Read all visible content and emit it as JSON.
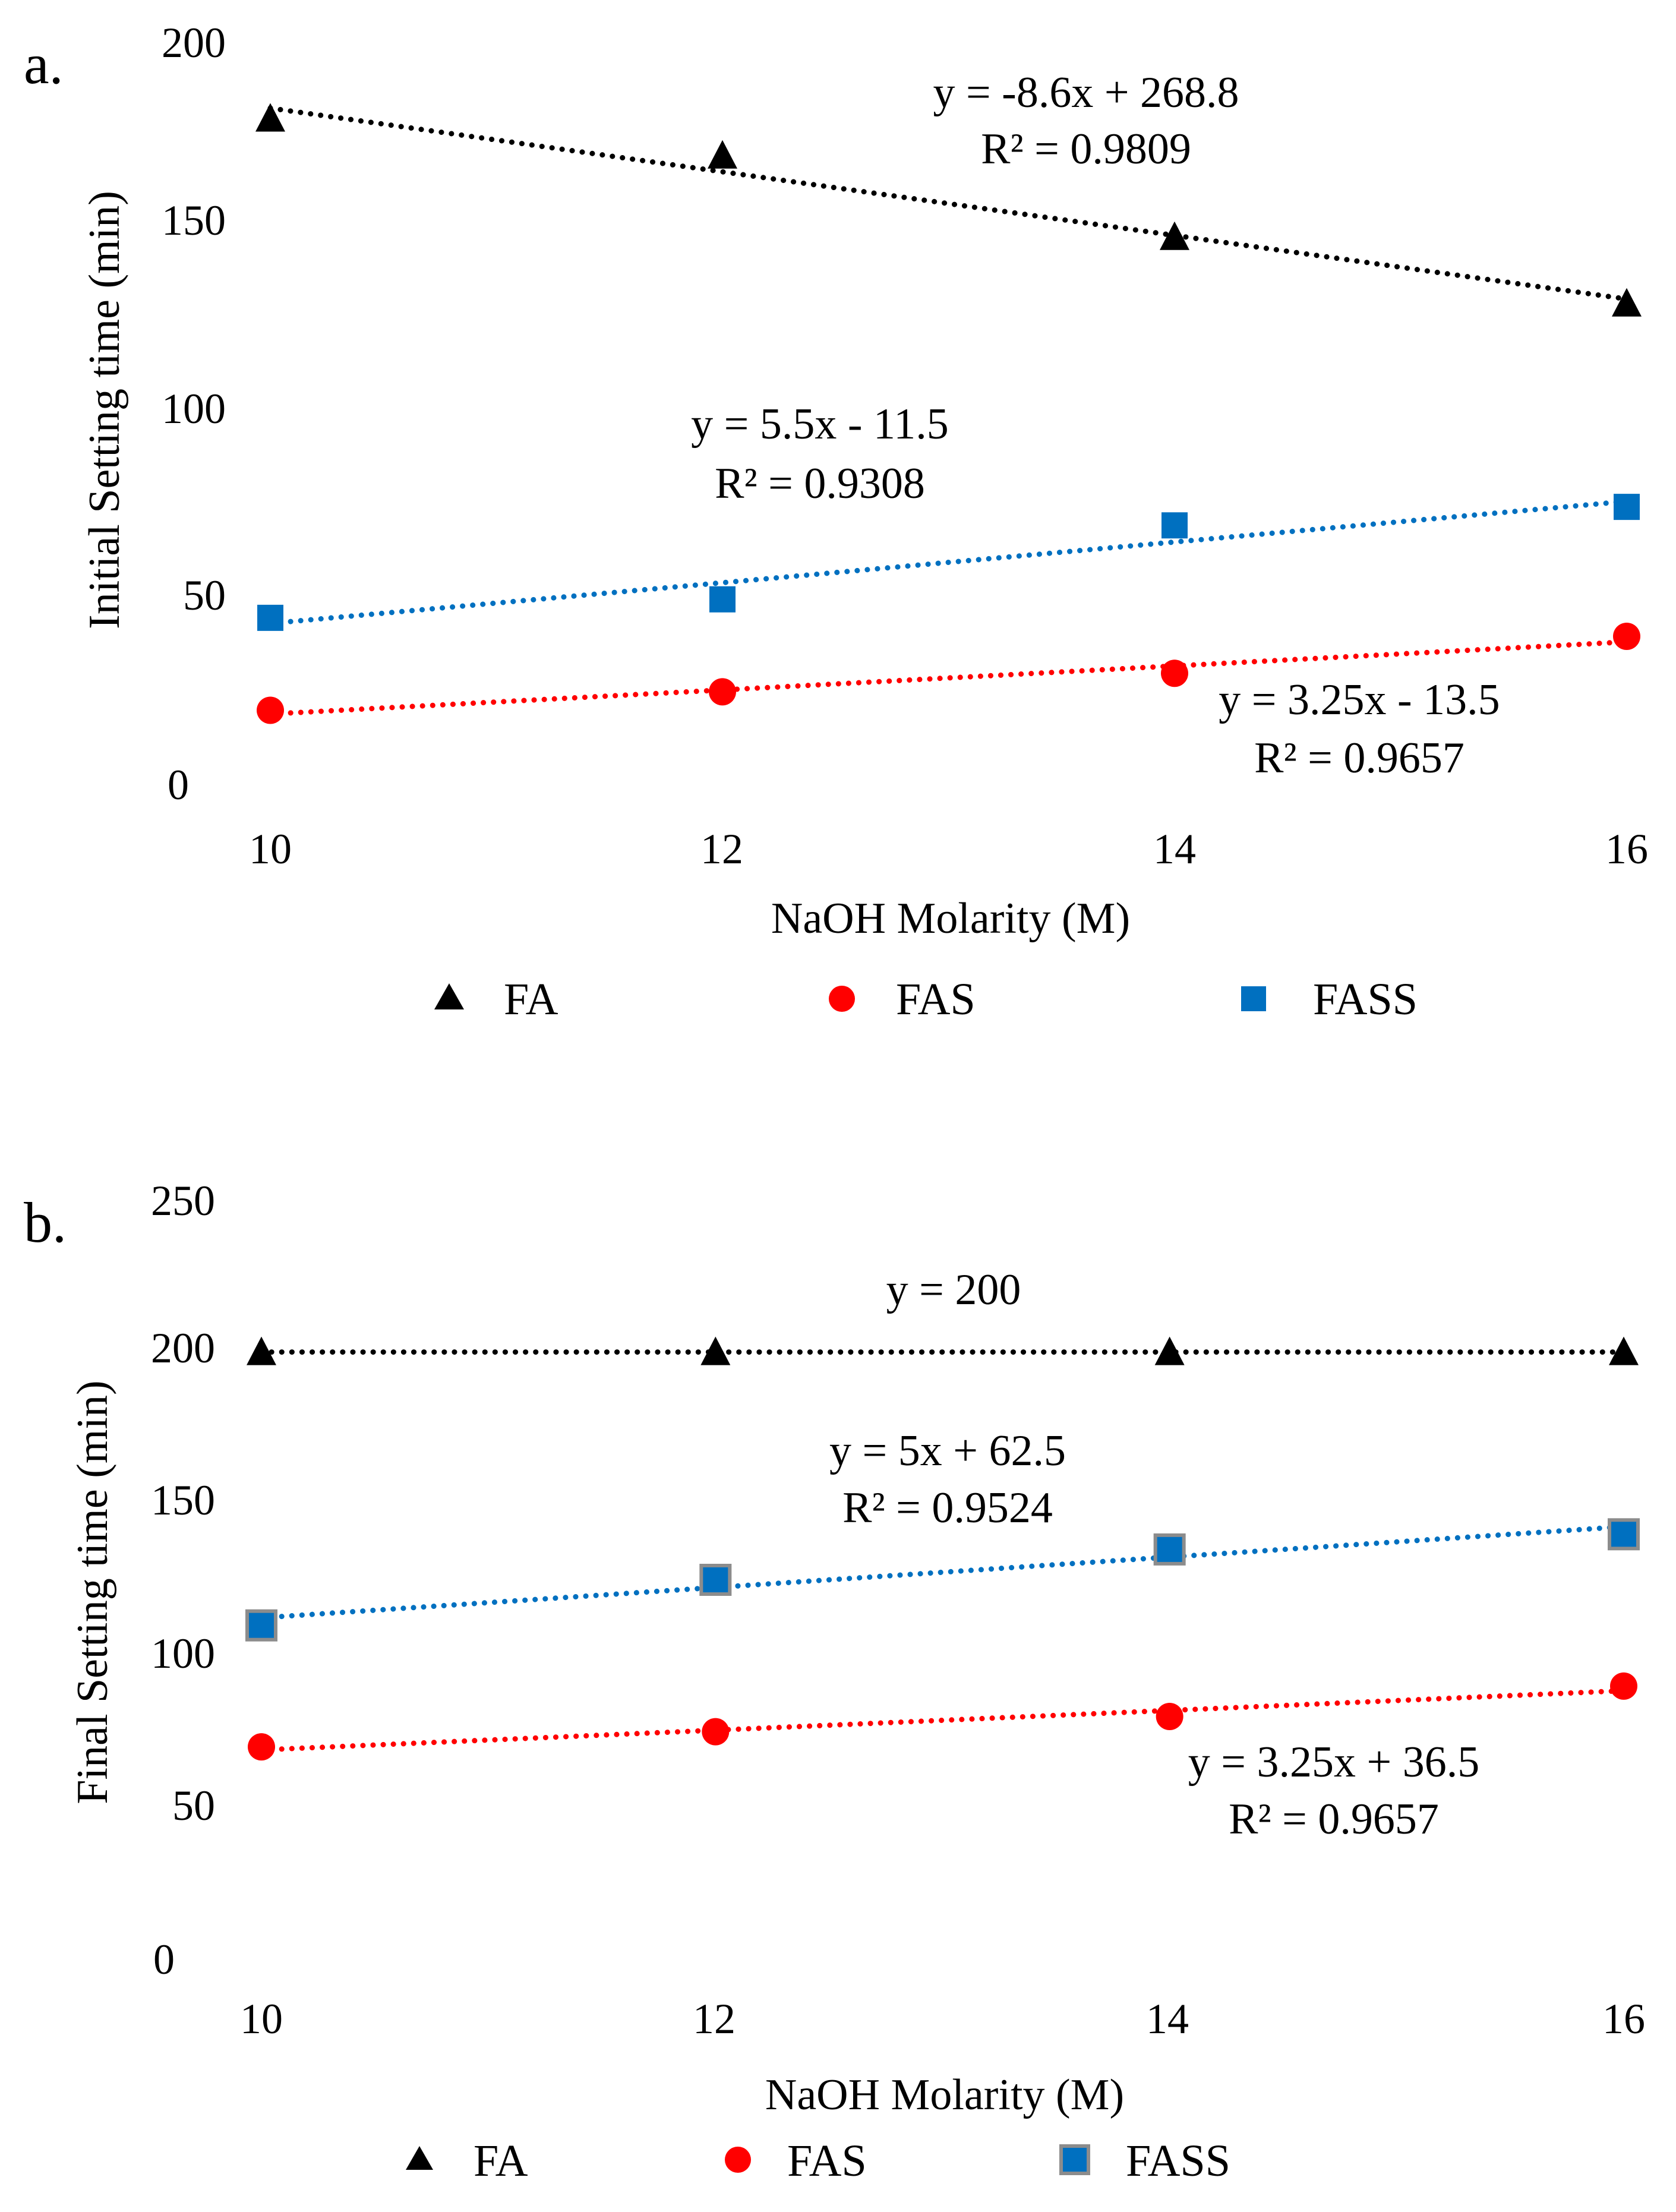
{
  "chart_data": [
    {
      "type": "scatter",
      "panel_label": "a.",
      "xlabel": "NaOH Molarity (M)",
      "ylabel": "Initial Setting time (min)",
      "xlim": [
        10,
        16
      ],
      "ylim": [
        0,
        200
      ],
      "x_ticks": [
        "10",
        "12",
        "14",
        "16"
      ],
      "y_ticks": [
        "0",
        "50",
        "100",
        "150",
        "200"
      ],
      "grid": false,
      "legend_position": "bottom",
      "series": [
        {
          "name": "FA",
          "color": "#000000",
          "marker": "triangle",
          "x": [
            10,
            12,
            14,
            16
          ],
          "values": [
            180,
            170,
            148,
            130
          ],
          "trendline": {
            "slope": -8.6,
            "intercept": 268.8,
            "equation": "y = -8.6x + 268.8",
            "r2": "R² = 0.9809"
          }
        },
        {
          "name": "FAS",
          "color": "#ff0000",
          "marker": "circle",
          "x": [
            10,
            12,
            14,
            16
          ],
          "values": [
            20,
            25,
            30,
            40
          ],
          "trendline": {
            "slope": 3.25,
            "intercept": -13.5,
            "equation": "y = 3.25x - 13.5",
            "r2": "R² = 0.9657"
          }
        },
        {
          "name": "FASS",
          "color": "#0070c0",
          "marker": "square",
          "x": [
            10,
            12,
            14,
            16
          ],
          "values": [
            45,
            50,
            70,
            75
          ],
          "trendline": {
            "slope": 5.5,
            "intercept": -11.5,
            "equation": "y = 5.5x - 11.5",
            "r2": "R² = 0.9308"
          }
        }
      ]
    },
    {
      "type": "scatter",
      "panel_label": "b.",
      "xlabel": "NaOH Molarity (M)",
      "ylabel": "Final Setting time (min)",
      "xlim": [
        10,
        16
      ],
      "ylim": [
        0,
        250
      ],
      "x_ticks": [
        "10",
        "12",
        "14",
        "16"
      ],
      "y_ticks": [
        "0",
        "50",
        "100",
        "150",
        "200",
        "250"
      ],
      "grid": false,
      "legend_position": "bottom",
      "series": [
        {
          "name": "FA",
          "color": "#000000",
          "marker": "triangle",
          "x": [
            10,
            12,
            14,
            16
          ],
          "values": [
            200,
            200,
            200,
            200
          ],
          "trendline": {
            "slope": 0,
            "intercept": 200,
            "equation": "y = 200",
            "r2": ""
          }
        },
        {
          "name": "FAS",
          "color": "#ff0000",
          "marker": "circle",
          "x": [
            10,
            12,
            14,
            16
          ],
          "values": [
            70,
            75,
            80,
            90
          ],
          "trendline": {
            "slope": 3.25,
            "intercept": 36.5,
            "equation": "y = 3.25x + 36.5",
            "r2": "R² = 0.9657"
          }
        },
        {
          "name": "FASS",
          "color": "#0070c0",
          "marker": "square-outlined",
          "x": [
            10,
            12,
            14,
            16
          ],
          "values": [
            110,
            125,
            135,
            140
          ],
          "trendline": {
            "slope": 5,
            "intercept": 62.5,
            "equation": "y = 5x + 62.5",
            "r2": "R² = 0.9524"
          }
        }
      ]
    }
  ]
}
